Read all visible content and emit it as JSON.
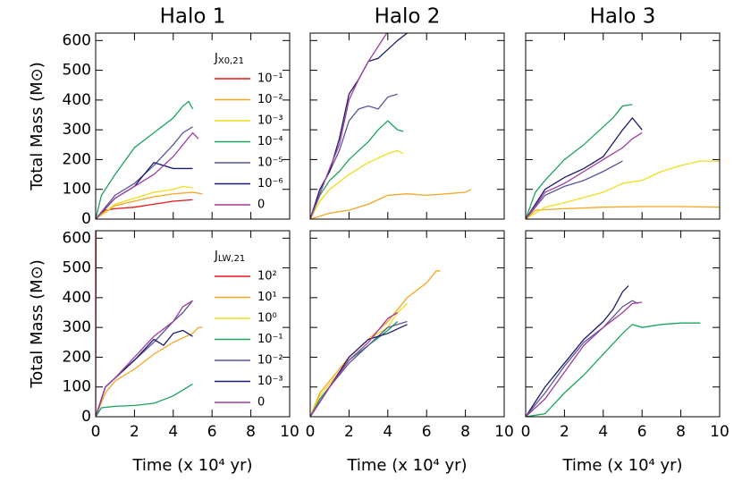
{
  "chart_data": [
    {
      "type": "line",
      "title": "Halo 1",
      "ylabel": "Total Mass (M⊙)",
      "legend_title": "J",
      "legend_title_sub": "X0,21",
      "xlim": [
        0,
        10
      ],
      "xticks": [
        0,
        2,
        4,
        6,
        8,
        10
      ],
      "ylim": [
        0,
        625
      ],
      "yticks": [
        0,
        100,
        200,
        300,
        400,
        500,
        600
      ],
      "series": [
        {
          "name": "10⁻¹",
          "color": "#e8161b",
          "x": [
            0,
            0.5,
            1,
            2,
            3,
            4,
            5
          ],
          "values": [
            0,
            30,
            35,
            40,
            50,
            60,
            65
          ]
        },
        {
          "name": "10⁻²",
          "color": "#f5a623",
          "x": [
            0,
            1,
            2,
            3,
            4,
            5,
            5.5
          ],
          "values": [
            0,
            45,
            60,
            75,
            85,
            90,
            85
          ]
        },
        {
          "name": "10⁻³",
          "color": "#f2dc1a",
          "x": [
            0,
            1,
            2,
            3,
            4,
            4.5,
            5
          ],
          "values": [
            0,
            50,
            70,
            90,
            100,
            110,
            105
          ]
        },
        {
          "name": "10⁻⁴",
          "color": "#1aa35c",
          "x": [
            0,
            0.3,
            1,
            2,
            3,
            4,
            4.5,
            4.8,
            5
          ],
          "values": [
            0,
            80,
            150,
            240,
            290,
            340,
            380,
            395,
            370
          ]
        },
        {
          "name": "10⁻⁵",
          "color": "#56569a",
          "x": [
            0,
            1,
            2,
            3,
            4,
            4.5,
            5
          ],
          "values": [
            0,
            80,
            120,
            180,
            250,
            290,
            310
          ]
        },
        {
          "name": "10⁻⁶",
          "color": "#1a1a6e",
          "x": [
            0,
            1,
            2,
            3,
            4,
            5
          ],
          "values": [
            0,
            70,
            110,
            190,
            170,
            170
          ]
        },
        {
          "name": "0",
          "color": "#a03ca0",
          "x": [
            0,
            1,
            2,
            3,
            4,
            4.5,
            5,
            5.3
          ],
          "values": [
            0,
            70,
            110,
            150,
            210,
            250,
            290,
            270
          ]
        }
      ]
    },
    {
      "type": "line",
      "title": "Halo 2",
      "xlim": [
        0,
        10
      ],
      "xticks": [
        0,
        2,
        4,
        6,
        8,
        10
      ],
      "ylim": [
        0,
        625
      ],
      "yticks": [
        0,
        100,
        200,
        300,
        400,
        500,
        600
      ],
      "series": [
        {
          "color": "#f5a623",
          "x": [
            0,
            1,
            2,
            3,
            4,
            5,
            6,
            7,
            8,
            8.3
          ],
          "values": [
            0,
            20,
            30,
            50,
            80,
            85,
            80,
            85,
            90,
            100
          ]
        },
        {
          "color": "#f2dc1a",
          "x": [
            0,
            0.5,
            1,
            2,
            3,
            4,
            4.5,
            4.8
          ],
          "values": [
            0,
            60,
            100,
            150,
            190,
            220,
            230,
            220
          ]
        },
        {
          "color": "#1aa35c",
          "x": [
            0,
            0.5,
            1,
            1.5,
            2,
            3,
            3.5,
            4,
            4.5,
            4.8
          ],
          "values": [
            0,
            80,
            130,
            160,
            200,
            260,
            300,
            330,
            300,
            295
          ]
        },
        {
          "color": "#56569a",
          "x": [
            0,
            0.5,
            1,
            1.5,
            2,
            2.5,
            3,
            3.5,
            4,
            4.5
          ],
          "values": [
            0,
            100,
            160,
            230,
            330,
            370,
            380,
            370,
            410,
            420
          ]
        },
        {
          "color": "#1a1a6e",
          "x": [
            0,
            0.5,
            1,
            1.5,
            2,
            2.5,
            3,
            3.5,
            4,
            4.5,
            5
          ],
          "values": [
            0,
            100,
            160,
            270,
            420,
            470,
            530,
            540,
            570,
            600,
            625
          ]
        },
        {
          "color": "#a03ca0",
          "x": [
            0,
            1,
            1.5,
            2,
            2.5,
            3,
            3.5,
            4
          ],
          "values": [
            0,
            170,
            250,
            400,
            470,
            530,
            580,
            630
          ]
        }
      ]
    },
    {
      "type": "line",
      "title": "Halo 3",
      "xlim": [
        0,
        10
      ],
      "xticks": [
        0,
        2,
        4,
        6,
        8,
        10
      ],
      "ylim": [
        0,
        625
      ],
      "yticks": [
        0,
        100,
        200,
        300,
        400,
        500,
        600
      ],
      "series": [
        {
          "color": "#f5a623",
          "x": [
            0,
            0.5,
            2,
            4,
            6,
            8,
            10
          ],
          "values": [
            0,
            30,
            35,
            40,
            42,
            42,
            40
          ]
        },
        {
          "color": "#f2dc1a",
          "x": [
            0,
            1,
            2,
            4,
            5,
            6,
            7,
            8,
            9,
            10
          ],
          "values": [
            0,
            40,
            55,
            90,
            120,
            130,
            160,
            180,
            195,
            195
          ]
        },
        {
          "color": "#1aa35c",
          "x": [
            0,
            0.5,
            1,
            2,
            3,
            4,
            4.5,
            5,
            5.5
          ],
          "values": [
            0,
            90,
            130,
            200,
            250,
            310,
            340,
            380,
            385
          ]
        },
        {
          "color": "#56569a",
          "x": [
            0,
            1,
            2,
            3,
            4,
            5
          ],
          "values": [
            0,
            80,
            110,
            130,
            160,
            195
          ]
        },
        {
          "color": "#1a1a6e",
          "x": [
            0,
            1,
            2,
            3,
            4,
            5,
            5.5,
            6
          ],
          "values": [
            0,
            100,
            140,
            170,
            210,
            300,
            340,
            300
          ]
        },
        {
          "color": "#a03ca0",
          "x": [
            0,
            1,
            2,
            3,
            4,
            5,
            5.5,
            6
          ],
          "values": [
            0,
            90,
            120,
            160,
            200,
            240,
            270,
            290
          ]
        }
      ]
    },
    {
      "type": "line",
      "ylabel": "Total Mass (M⊙)",
      "xlabel": "Time (x 10⁴ yr)",
      "legend_title": "J",
      "legend_title_sub": "LW,21",
      "xlim": [
        0,
        10
      ],
      "xticks": [
        0,
        2,
        4,
        6,
        8,
        10
      ],
      "ylim": [
        0,
        625
      ],
      "yticks": [
        0,
        100,
        200,
        300,
        400,
        500,
        600
      ],
      "series": [
        {
          "name": "10²",
          "color": "#e8161b",
          "x": [
            0,
            0.02
          ],
          "values": [
            0,
            625
          ]
        },
        {
          "name": "10¹",
          "color": "#f5a623",
          "x": [
            0,
            0.5,
            1,
            2,
            3,
            4,
            5,
            5.3,
            5.5
          ],
          "values": [
            0,
            80,
            120,
            160,
            210,
            250,
            280,
            300,
            300
          ]
        },
        {
          "name": "10⁰",
          "color": "#f2dc1a",
          "x": [],
          "values": []
        },
        {
          "name": "10⁻¹",
          "color": "#1aa35c",
          "x": [
            0,
            0.3,
            1,
            2,
            3,
            4,
            4.5,
            5
          ],
          "values": [
            0,
            30,
            35,
            38,
            45,
            70,
            90,
            110
          ]
        },
        {
          "name": "10⁻²",
          "color": "#56569a",
          "x": [
            0,
            0.5,
            1,
            2,
            3,
            4,
            4.5,
            5
          ],
          "values": [
            0,
            100,
            130,
            190,
            250,
            320,
            350,
            390
          ]
        },
        {
          "name": "10⁻³",
          "color": "#1a1a6e",
          "x": [
            0,
            0.5,
            1,
            2,
            3,
            3.5,
            4,
            4.5,
            5
          ],
          "values": [
            0,
            100,
            130,
            190,
            260,
            240,
            280,
            290,
            270
          ]
        },
        {
          "name": "0",
          "color": "#a03ca0",
          "x": [
            0,
            0.5,
            1,
            2,
            3,
            4,
            4.5,
            5
          ],
          "values": [
            0,
            100,
            130,
            200,
            270,
            320,
            370,
            390
          ]
        }
      ]
    },
    {
      "type": "line",
      "xlabel": "Time (x 10⁴ yr)",
      "xlim": [
        0,
        10
      ],
      "xticks": [
        0,
        2,
        4,
        6,
        8,
        10
      ],
      "ylim": [
        0,
        625
      ],
      "yticks": [
        0,
        100,
        200,
        300,
        400,
        500,
        600
      ],
      "series": [
        {
          "color": "#f5a623",
          "x": [
            0,
            0.5,
            1,
            2,
            3,
            4,
            5,
            6,
            6.5,
            6.7
          ],
          "values": [
            0,
            80,
            120,
            200,
            260,
            320,
            400,
            450,
            490,
            490
          ]
        },
        {
          "color": "#f2dc1a",
          "x": [
            0,
            0.5,
            1,
            1.5,
            2,
            3,
            4,
            4.5,
            5
          ],
          "values": [
            0,
            70,
            110,
            150,
            200,
            260,
            300,
            350,
            380
          ]
        },
        {
          "color": "#1aa35c",
          "x": [
            0,
            0.5,
            1,
            2,
            3,
            4,
            4.5
          ],
          "values": [
            0,
            60,
            100,
            190,
            240,
            290,
            320
          ]
        },
        {
          "color": "#56569a",
          "x": [
            0,
            1,
            2,
            3,
            4,
            5
          ],
          "values": [
            0,
            100,
            180,
            240,
            300,
            320
          ]
        },
        {
          "color": "#1a1a6e",
          "x": [
            0,
            1,
            2,
            3,
            4,
            5
          ],
          "values": [
            0,
            100,
            200,
            260,
            280,
            310
          ]
        },
        {
          "color": "#a03ca0",
          "x": [
            0,
            1,
            2,
            3,
            4,
            4.5
          ],
          "values": [
            0,
            100,
            190,
            250,
            330,
            350
          ]
        }
      ]
    },
    {
      "type": "line",
      "xlabel": "Time (x 10⁴ yr)",
      "xlim": [
        0,
        10
      ],
      "xticks": [
        0,
        2,
        4,
        6,
        8,
        10
      ],
      "ylim": [
        0,
        625
      ],
      "yticks": [
        0,
        100,
        200,
        300,
        400,
        500,
        600
      ],
      "series": [
        {
          "color": "#1aa35c",
          "x": [
            0,
            1,
            2,
            3,
            4,
            5,
            5.5,
            6,
            7,
            8,
            9
          ],
          "values": [
            0,
            10,
            80,
            140,
            210,
            280,
            310,
            300,
            310,
            315,
            315
          ]
        },
        {
          "color": "#1a1a6e",
          "x": [
            0,
            1,
            2,
            3,
            4,
            4.5,
            5,
            5.3
          ],
          "values": [
            0,
            100,
            180,
            260,
            320,
            360,
            420,
            440
          ]
        },
        {
          "color": "#56569a",
          "x": [
            0,
            1,
            2,
            3,
            4,
            5,
            5.5,
            5.8
          ],
          "values": [
            0,
            80,
            170,
            250,
            300,
            370,
            390,
            380
          ]
        },
        {
          "color": "#a03ca0",
          "x": [
            0,
            1,
            2,
            3,
            4,
            5,
            5.5,
            6
          ],
          "values": [
            0,
            60,
            150,
            240,
            300,
            350,
            380,
            385
          ]
        }
      ]
    }
  ]
}
